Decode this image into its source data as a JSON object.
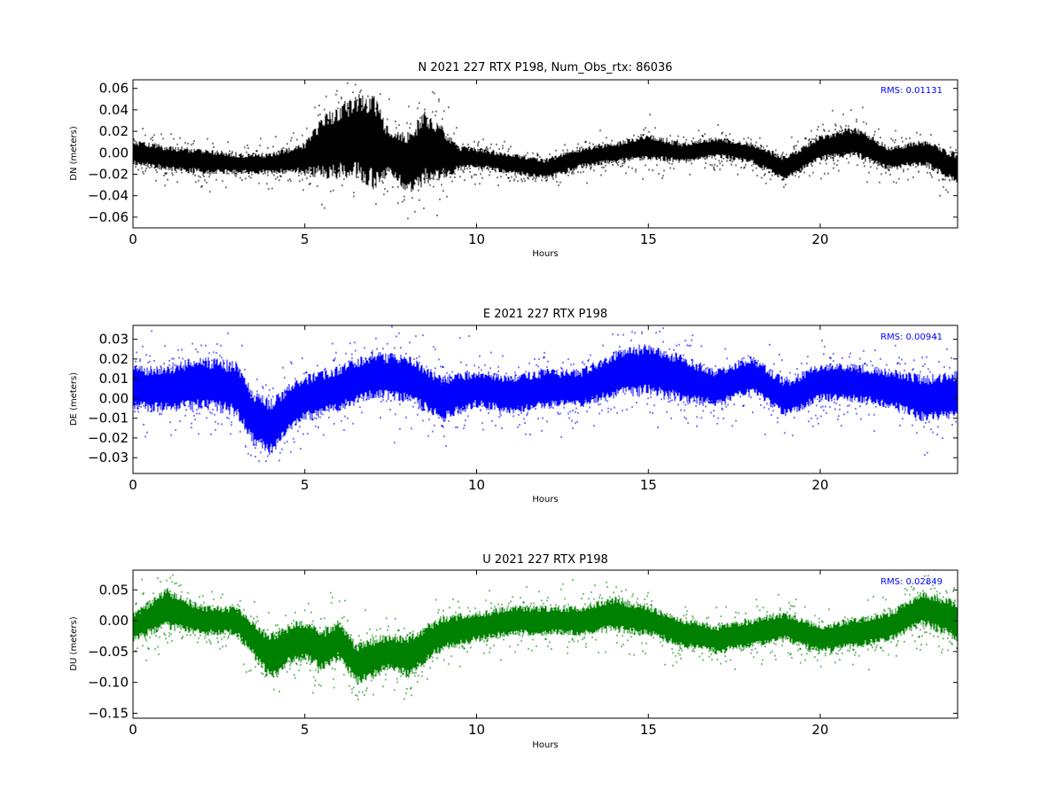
{
  "chart_data": [
    {
      "type": "scatter",
      "title": "N 2021 227 RTX  P198, Num_Obs_rtx: 86036",
      "xlabel": "Hours",
      "ylabel": "DN (meters)",
      "xlim": [
        0,
        24
      ],
      "ylim": [
        -0.07,
        0.068
      ],
      "xticks": [
        0,
        5,
        10,
        15,
        20
      ],
      "yticks": [
        -0.06,
        -0.04,
        -0.02,
        0.0,
        0.02,
        0.04,
        0.06
      ],
      "ytick_labels": [
        "−0.06",
        "−0.04",
        "−0.02",
        "0.00",
        "0.02",
        "0.04",
        "0.06"
      ],
      "annotation": "RMS:  0.01131",
      "color": "#000000",
      "annotation_color": "#0000ff",
      "series": [
        {
          "x": [
            0,
            1,
            2,
            3,
            4,
            5,
            5.5,
            6,
            6.5,
            7,
            7.5,
            8,
            8.5,
            9,
            9.5,
            10,
            11,
            12,
            13,
            14,
            15,
            16,
            17,
            18,
            19,
            20,
            21,
            22,
            23,
            24
          ],
          "center": [
            0,
            -0.005,
            -0.008,
            -0.01,
            -0.01,
            -0.005,
            0.005,
            0.01,
            0.015,
            0.01,
            0.0,
            -0.01,
            0.005,
            0.0,
            -0.005,
            -0.005,
            -0.01,
            -0.015,
            -0.005,
            0.0,
            0.005,
            0.0,
            0.005,
            0.0,
            -0.015,
            0.005,
            0.01,
            -0.005,
            0.0,
            -0.015
          ],
          "spread": [
            0.012,
            0.012,
            0.012,
            0.01,
            0.01,
            0.015,
            0.03,
            0.035,
            0.04,
            0.045,
            0.02,
            0.03,
            0.035,
            0.025,
            0.012,
            0.01,
            0.01,
            0.01,
            0.01,
            0.01,
            0.012,
            0.01,
            0.01,
            0.01,
            0.012,
            0.012,
            0.015,
            0.012,
            0.012,
            0.015
          ]
        }
      ]
    },
    {
      "type": "scatter",
      "title": "E 2021 227 RTX  P198",
      "xlabel": "Hours",
      "ylabel": "DE (meters)",
      "xlim": [
        0,
        24
      ],
      "ylim": [
        -0.038,
        0.037
      ],
      "xticks": [
        0,
        5,
        10,
        15,
        20
      ],
      "yticks": [
        -0.03,
        -0.02,
        -0.01,
        0.0,
        0.01,
        0.02,
        0.03
      ],
      "ytick_labels": [
        "−0.03",
        "−0.02",
        "−0.01",
        "0.00",
        "0.01",
        "0.02",
        "0.03"
      ],
      "annotation": "RMS:  0.00941",
      "color": "#0000ff",
      "annotation_color": "#0000ff",
      "series": [
        {
          "x": [
            0,
            1,
            2,
            3,
            3.5,
            4,
            4.5,
            5,
            6,
            7,
            8,
            9,
            10,
            11,
            12,
            13,
            14,
            15,
            16,
            17,
            18,
            19,
            20,
            21,
            22,
            23,
            24
          ],
          "center": [
            0.005,
            0.005,
            0.008,
            0.005,
            -0.01,
            -0.015,
            -0.005,
            0.0,
            0.005,
            0.012,
            0.01,
            0.0,
            0.005,
            0.002,
            0.005,
            0.005,
            0.012,
            0.015,
            0.01,
            0.005,
            0.012,
            0.0,
            0.008,
            0.008,
            0.005,
            0.0,
            0.002
          ],
          "spread": [
            0.012,
            0.012,
            0.014,
            0.014,
            0.014,
            0.015,
            0.012,
            0.012,
            0.012,
            0.012,
            0.012,
            0.012,
            0.01,
            0.01,
            0.01,
            0.01,
            0.012,
            0.014,
            0.012,
            0.01,
            0.01,
            0.01,
            0.01,
            0.01,
            0.01,
            0.012,
            0.012
          ]
        }
      ]
    },
    {
      "type": "scatter",
      "title": "U 2021 227 RTX  P198",
      "xlabel": "Hours",
      "ylabel": "DU (meters)",
      "xlim": [
        0,
        24
      ],
      "ylim": [
        -0.158,
        0.082
      ],
      "xticks": [
        0,
        5,
        10,
        15,
        20
      ],
      "yticks": [
        -0.15,
        -0.1,
        -0.05,
        0.0,
        0.05
      ],
      "ytick_labels": [
        "−0.15",
        "−0.10",
        "−0.05",
        "0.00",
        "0.05"
      ],
      "annotation": "RMS:  0.02849",
      "color": "#008000",
      "annotation_color": "#0000ff",
      "series": [
        {
          "x": [
            0,
            1,
            2,
            3,
            3.5,
            4,
            4.5,
            5,
            5.5,
            6,
            6.5,
            7,
            7.5,
            8,
            9,
            10,
            11,
            12,
            13,
            14,
            15,
            16,
            17,
            18,
            19,
            20,
            21,
            22,
            23,
            24
          ],
          "center": [
            -0.01,
            0.02,
            0.0,
            0.0,
            -0.03,
            -0.06,
            -0.04,
            -0.03,
            -0.05,
            -0.03,
            -0.07,
            -0.06,
            -0.05,
            -0.06,
            -0.02,
            -0.01,
            0.0,
            0.0,
            0.0,
            0.01,
            0.0,
            -0.02,
            -0.03,
            -0.02,
            -0.01,
            -0.03,
            -0.02,
            -0.01,
            0.02,
            0.0
          ],
          "spread": [
            0.025,
            0.035,
            0.025,
            0.025,
            0.03,
            0.04,
            0.035,
            0.035,
            0.035,
            0.035,
            0.035,
            0.035,
            0.03,
            0.035,
            0.03,
            0.025,
            0.025,
            0.025,
            0.025,
            0.03,
            0.025,
            0.025,
            0.025,
            0.025,
            0.025,
            0.025,
            0.025,
            0.025,
            0.03,
            0.035
          ]
        }
      ]
    }
  ]
}
